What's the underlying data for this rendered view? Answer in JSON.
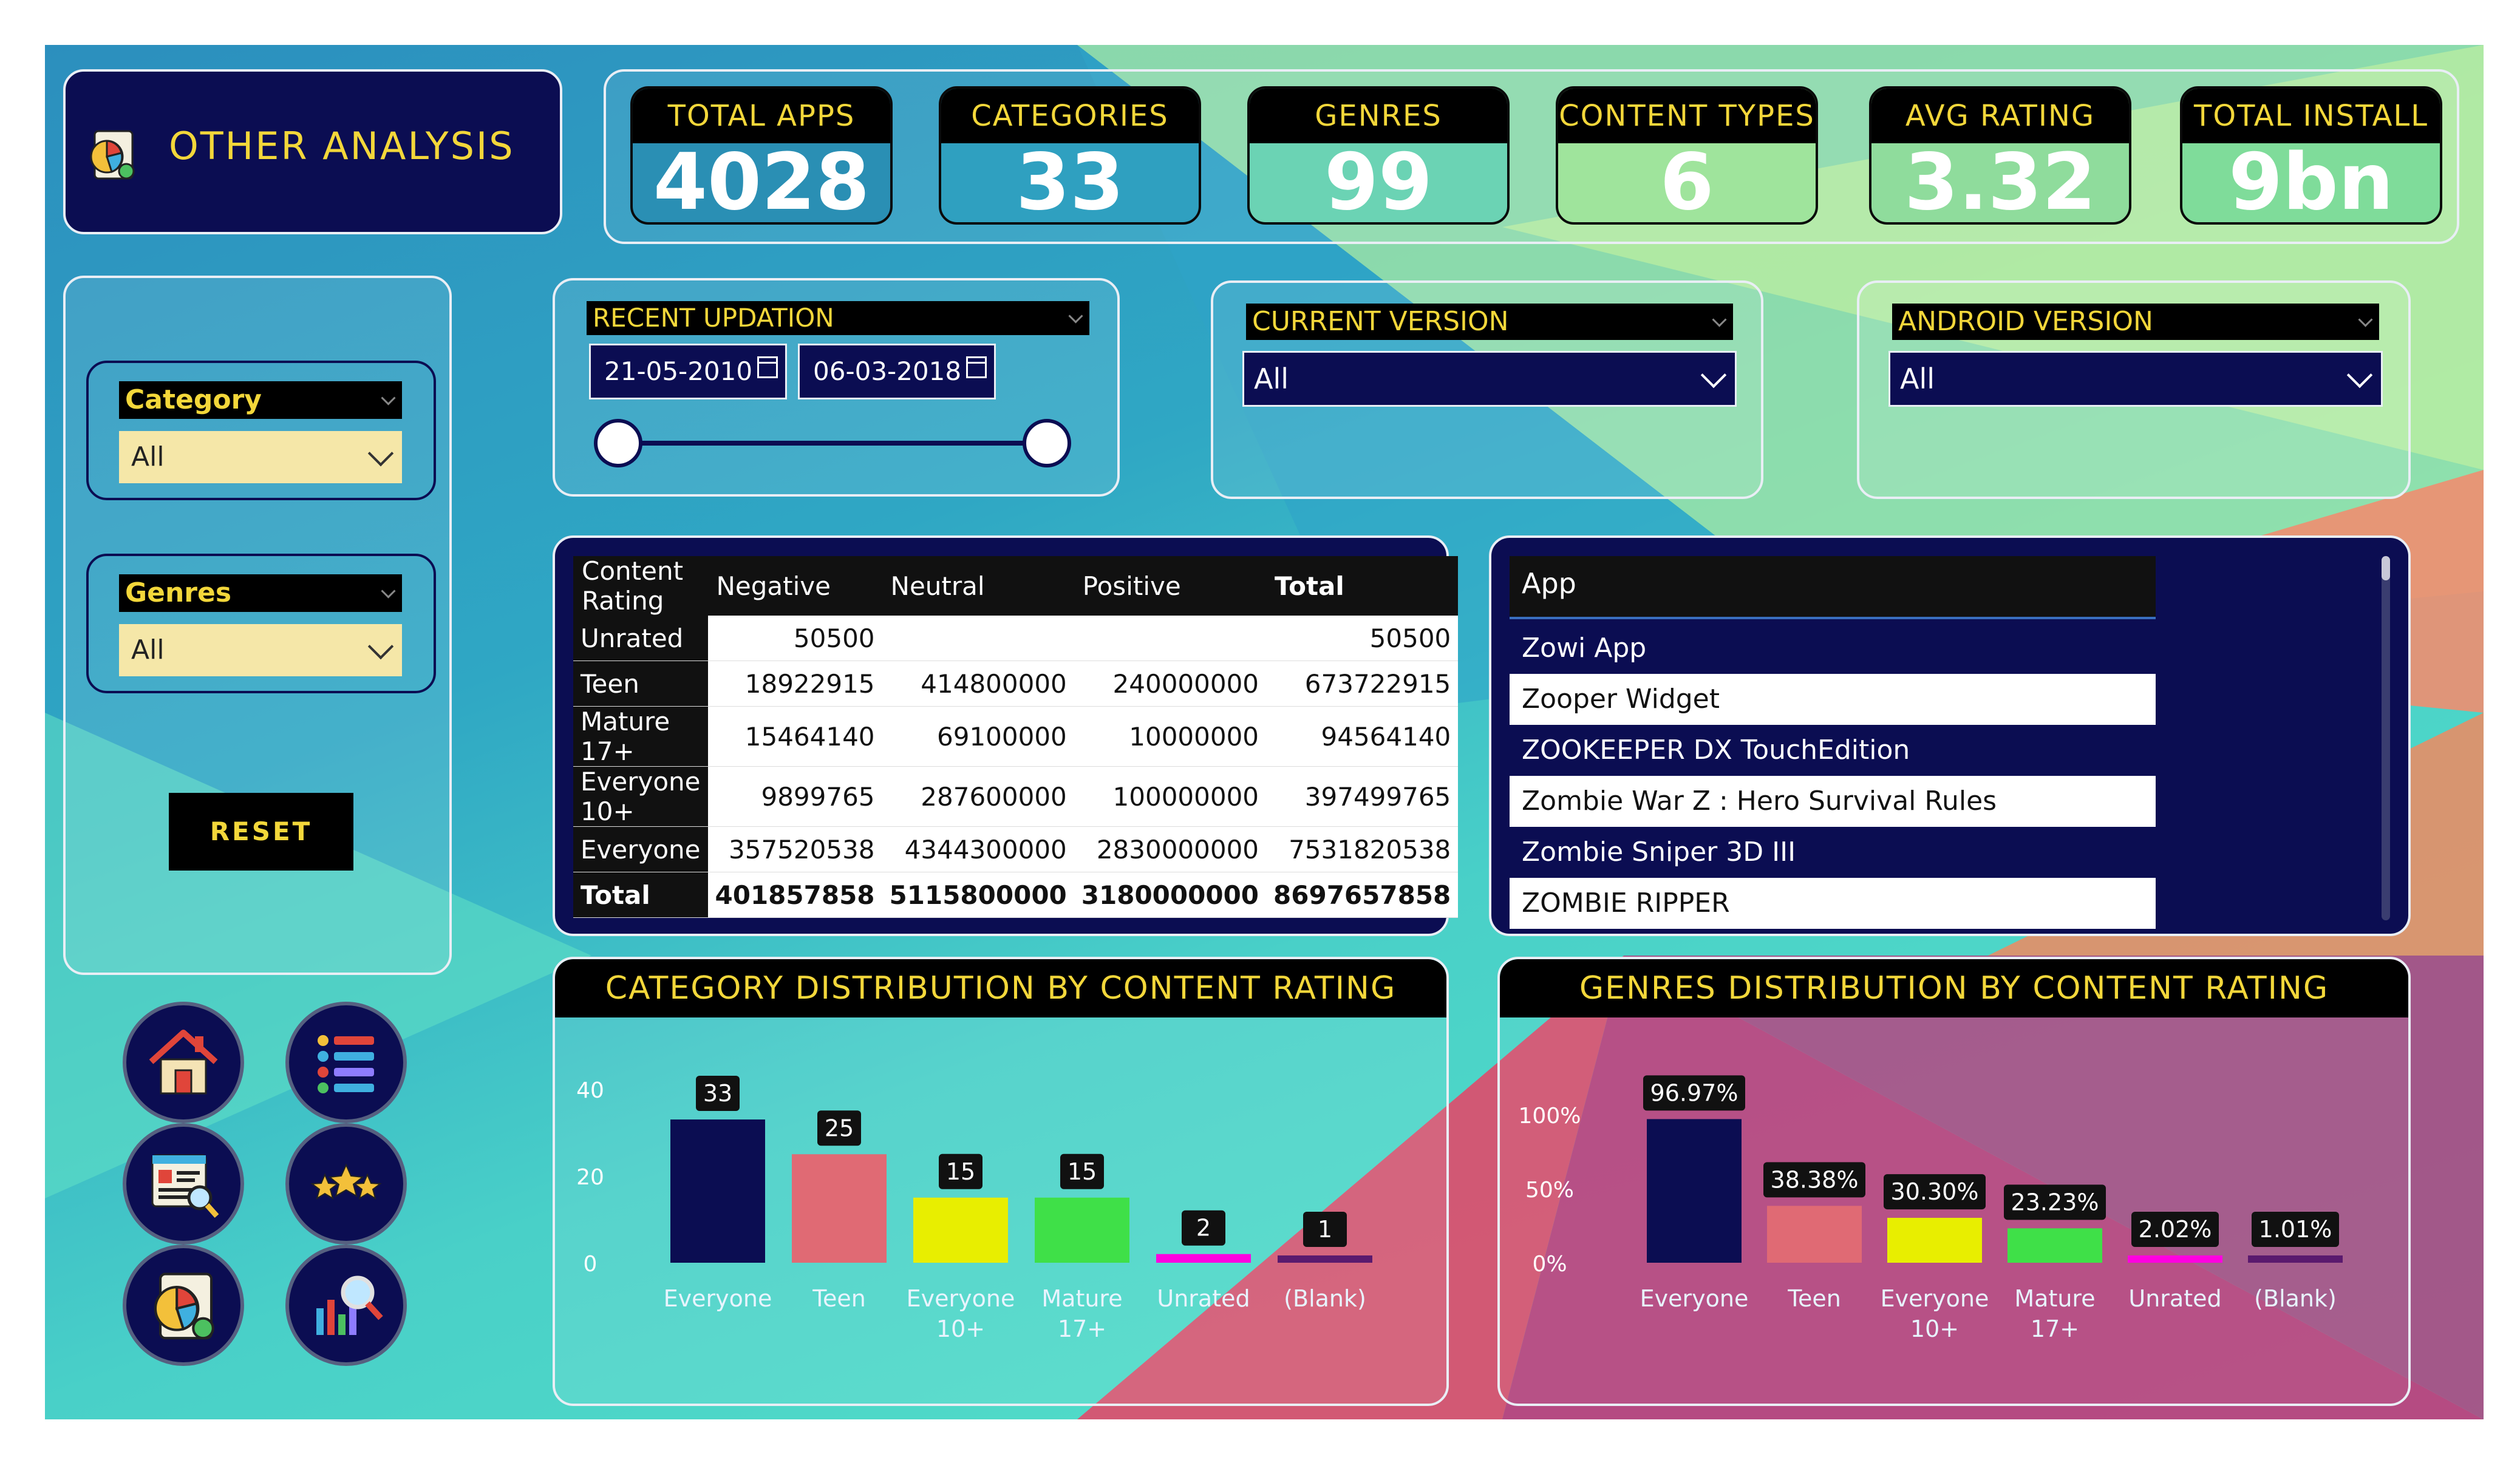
{
  "header": {
    "title": "OTHER ANALYSIS",
    "icon": "pie-chart-report-icon"
  },
  "kpis": [
    {
      "label": "TOTAL APPS",
      "value": "4028",
      "color": "#2a8fb4"
    },
    {
      "label": "CATEGORIES",
      "value": "33",
      "color": "#2fa0c0"
    },
    {
      "label": "GENRES",
      "value": "99",
      "color": "#6bd3b4"
    },
    {
      "label": "CONTENT TYPES",
      "value": "6",
      "color": "#9fe49c"
    },
    {
      "label": "AVG RATING",
      "value": "3.32",
      "color": "#8fdc9c"
    },
    {
      "label": "TOTAL INSTALL",
      "value": "9bn",
      "color": "#7fdc9a"
    }
  ],
  "filters": {
    "category": {
      "label": "Category",
      "value": "All"
    },
    "genres": {
      "label": "Genres",
      "value": "All"
    },
    "reset_label": "RESET",
    "recent_updation": {
      "label": "RECENT UPDATION",
      "start": "21-05-2010",
      "end": "06-03-2018"
    },
    "current_version": {
      "label": "CURRENT VERSION",
      "value": "All"
    },
    "android_version": {
      "label": "ANDROID VERSION",
      "value": "All"
    }
  },
  "matrix": {
    "headers": [
      "Content Rating",
      "Negative",
      "Neutral",
      "Positive",
      "Total"
    ],
    "rows": [
      {
        "label": "Unrated",
        "negative": "50500",
        "neutral": "",
        "positive": "",
        "total": "50500"
      },
      {
        "label": "Teen",
        "negative": "18922915",
        "neutral": "414800000",
        "positive": "240000000",
        "total": "673722915"
      },
      {
        "label": "Mature 17+",
        "negative": "15464140",
        "neutral": "69100000",
        "positive": "10000000",
        "total": "94564140"
      },
      {
        "label": "Everyone 10+",
        "negative": "9899765",
        "neutral": "287600000",
        "positive": "100000000",
        "total": "397499765"
      },
      {
        "label": "Everyone",
        "negative": "357520538",
        "neutral": "4344300000",
        "positive": "2830000000",
        "total": "7531820538"
      },
      {
        "label": "Total",
        "negative": "401857858",
        "neutral": "5115800000",
        "positive": "3180000000",
        "total": "8697657858"
      }
    ]
  },
  "app_list": {
    "header": "App",
    "items": [
      "Zowi App",
      "Zooper Widget",
      "ZOOKEEPER DX TouchEdition",
      "Zombie War Z : Hero Survival Rules",
      "Zombie Sniper 3D III",
      "ZOMBIE RIPPER"
    ]
  },
  "chart_data": [
    {
      "type": "bar",
      "title": "CATEGORY DISTRIBUTION BY CONTENT RATING",
      "categories": [
        "Everyone",
        "Teen",
        "Everyone 10+",
        "Mature 17+",
        "Unrated",
        "(Blank)"
      ],
      "category_lines": [
        [
          "Everyone"
        ],
        [
          "Teen"
        ],
        [
          "Everyone",
          "10+"
        ],
        [
          "Mature",
          "17+"
        ],
        [
          "Unrated"
        ],
        [
          "(Blank)"
        ]
      ],
      "values": [
        33,
        25,
        15,
        15,
        2,
        1
      ],
      "data_labels": [
        "33",
        "25",
        "15",
        "15",
        "2",
        "1"
      ],
      "colors": [
        "#0b0d52",
        "#e06a74",
        "#e8ee00",
        "#3fe048",
        "#ff00e0",
        "#5a1a6e"
      ],
      "ylim": [
        0,
        40
      ],
      "yticks": [
        "0",
        "20",
        "40"
      ],
      "ytick_values": [
        0,
        20,
        40
      ],
      "grid": false
    },
    {
      "type": "bar",
      "title": "GENRES DISTRIBUTION BY CONTENT RATING",
      "categories": [
        "Everyone",
        "Teen",
        "Everyone 10+",
        "Mature 17+",
        "Unrated",
        "(Blank)"
      ],
      "category_lines": [
        [
          "Everyone"
        ],
        [
          "Teen"
        ],
        [
          "Everyone",
          "10+"
        ],
        [
          "Mature",
          "17+"
        ],
        [
          "Unrated"
        ],
        [
          "(Blank)"
        ]
      ],
      "values": [
        96.97,
        38.38,
        30.3,
        23.23,
        2.02,
        1.01
      ],
      "data_labels": [
        "96.97%",
        "38.38%",
        "30.30%",
        "23.23%",
        "2.02%",
        "1.01%"
      ],
      "colors": [
        "#0b0d52",
        "#e06a74",
        "#e8ee00",
        "#3fe048",
        "#ff00e0",
        "#5a1a6e"
      ],
      "ylim": [
        0,
        100
      ],
      "yticks": [
        "0%",
        "50%",
        "100%"
      ],
      "ytick_values": [
        0,
        50,
        100
      ],
      "grid": false
    }
  ],
  "nav_icons": [
    "home-icon",
    "list-icon",
    "report-search-icon",
    "stars-icon",
    "pie-chart-report-icon",
    "bar-chart-search-icon"
  ]
}
